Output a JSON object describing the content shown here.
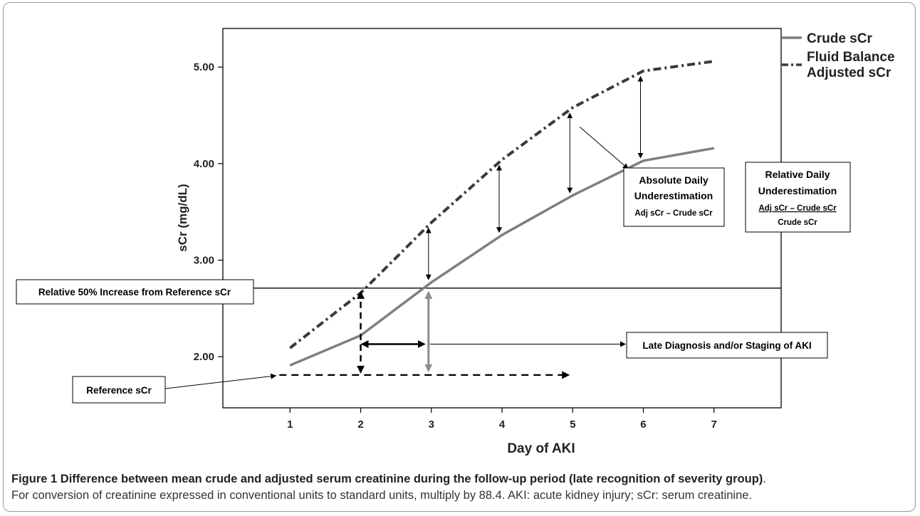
{
  "chart_data": {
    "type": "line",
    "title": "",
    "xlabel": "Day of AKI",
    "ylabel": "sCr (mg/dL)",
    "x": [
      1,
      2,
      3,
      4,
      5,
      6,
      7
    ],
    "xlim": [
      0.05,
      7.95
    ],
    "ylim": [
      1.47,
      5.4
    ],
    "y_ticks": [
      2.0,
      3.0,
      4.0,
      5.0
    ],
    "y_tick_labels": [
      "2.00",
      "3.00",
      "4.00",
      "5.00"
    ],
    "x_tick_labels": [
      "1",
      "2",
      "3",
      "4",
      "5",
      "6",
      "7"
    ],
    "grid": false,
    "legend_position": "top-right outside",
    "series": [
      {
        "name": "Crude sCr",
        "style": "solid",
        "color": "#7f7f7f",
        "values": [
          1.91,
          2.22,
          2.77,
          3.26,
          3.67,
          4.03,
          4.16
        ]
      },
      {
        "name": "Fluid Balance Adjusted sCr",
        "style": "dash-dot",
        "color": "#3a3a3a",
        "values": [
          2.09,
          2.66,
          3.39,
          4.04,
          4.58,
          4.96,
          5.06
        ]
      }
    ],
    "reference_lines": [
      {
        "label": "Relative 50% Increase from Reference sCr",
        "y": 2.71,
        "style": "solid"
      },
      {
        "label": "Reference sCr",
        "y": 1.81,
        "x_end": 5.02,
        "style": "dashed"
      }
    ],
    "annotations": {
      "absolute": {
        "title_1": "Absolute Daily",
        "title_2": "Underestimation",
        "formula": "Adj sCr – Crude sCr"
      },
      "relative": {
        "title_1": "Relative Daily",
        "title_2": "Underestimation",
        "numerator": "Adj sCr – Crude sCr",
        "denominator": "Crude sCr"
      },
      "late_diagnosis": "Late Diagnosis and/or Staging of AKI"
    }
  },
  "caption": {
    "label": "Figure 1",
    "title": "Difference between mean crude and adjusted serum creatinine during the follow-up period (late recognition of severity group)",
    "text": "For conversion of creatinine expressed in conventional units to standard units, multiply by 88.4. AKI: acute kidney injury; sCr: serum creatinine."
  }
}
